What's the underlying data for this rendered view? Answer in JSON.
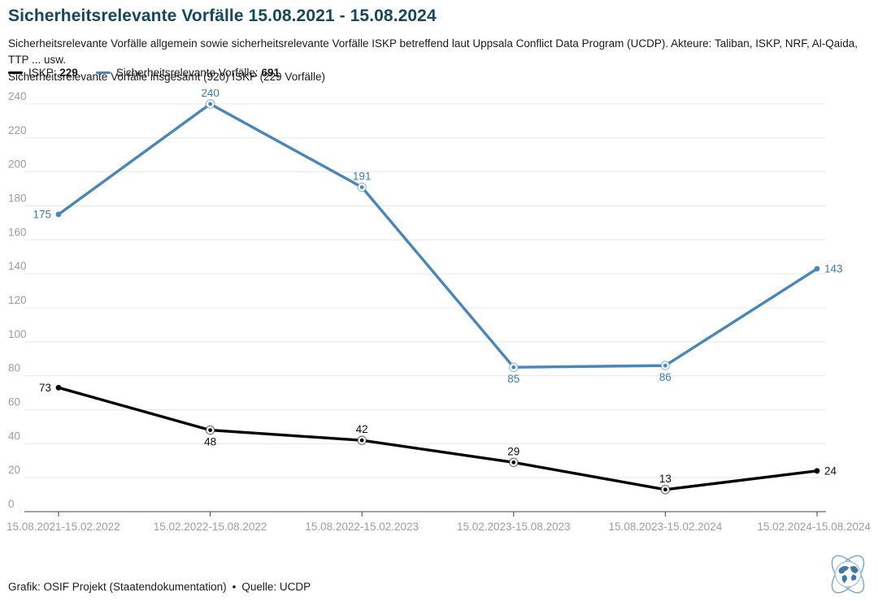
{
  "header": {
    "title": "Sicherheitsrelevante Vorfälle 15.08.2021 - 15.08.2024",
    "subtitle_line1": "Sicherheitsrelevante Vorfälle allgemein sowie sicherheitsrelevante Vorfälle ISKP betreffend laut Uppsala Conflict Data Program (UCDP). Akteure: Taliban, ISKP, NRF, Al-Qaida, TTP ... usw.",
    "subtitle_line2": "Sicherheitsrelevante Vorfälle insgesamt (920) ISKP (229 Vorfälle)"
  },
  "legend": {
    "items": [
      {
        "label": "ISKP:",
        "value": "229",
        "color": "#000000"
      },
      {
        "label": "Sicherheitsrelevante Vorfälle:",
        "value": "691",
        "color": "#4a86b8"
      }
    ]
  },
  "colors": {
    "title": "#17475c",
    "iskp_line": "#000000",
    "incidents_line": "#4a86b8",
    "incidents_label": "#3c7ab0",
    "axis_text": "#9a9fa3",
    "gridline": "#e8e8e8",
    "axis_line": "#444444"
  },
  "chart_data": {
    "type": "line",
    "title": "Sicherheitsrelevante Vorfälle 15.08.2021 - 15.08.2024",
    "xlabel": "",
    "ylabel": "",
    "ylim": [
      0,
      240
    ],
    "yticks": [
      0,
      20,
      40,
      60,
      80,
      100,
      120,
      140,
      160,
      180,
      200,
      220,
      240
    ],
    "grid": true,
    "legend_position": "top-left",
    "categories": [
      "15.08.2021-15.02.2022",
      "15.02.2022-15.08.2022",
      "15.08.2022-15.02.2023",
      "15.02.2023-15.08.2023",
      "15.08.2023-15.02.2024",
      "15.02.2024-15.08.2024"
    ],
    "series": [
      {
        "name": "Sicherheitsrelevante Vorfälle",
        "total": 691,
        "color": "#4a86b8",
        "label_color": "#3c7ab0",
        "values": [
          175,
          240,
          191,
          85,
          86,
          143
        ],
        "label_positions": [
          "left",
          "above",
          "above",
          "below",
          "below",
          "right"
        ]
      },
      {
        "name": "ISKP",
        "total": 229,
        "color": "#000000",
        "label_color": "#111111",
        "values": [
          73,
          48,
          42,
          29,
          13,
          24
        ],
        "label_positions": [
          "left",
          "below",
          "above",
          "above",
          "above",
          "right"
        ]
      }
    ]
  },
  "footer": {
    "credit": "Grafik: OSIF Projekt (Staatendokumentation)",
    "separator": "•",
    "source": "Quelle: UCDP",
    "logo": "globe-orbits-logo"
  }
}
